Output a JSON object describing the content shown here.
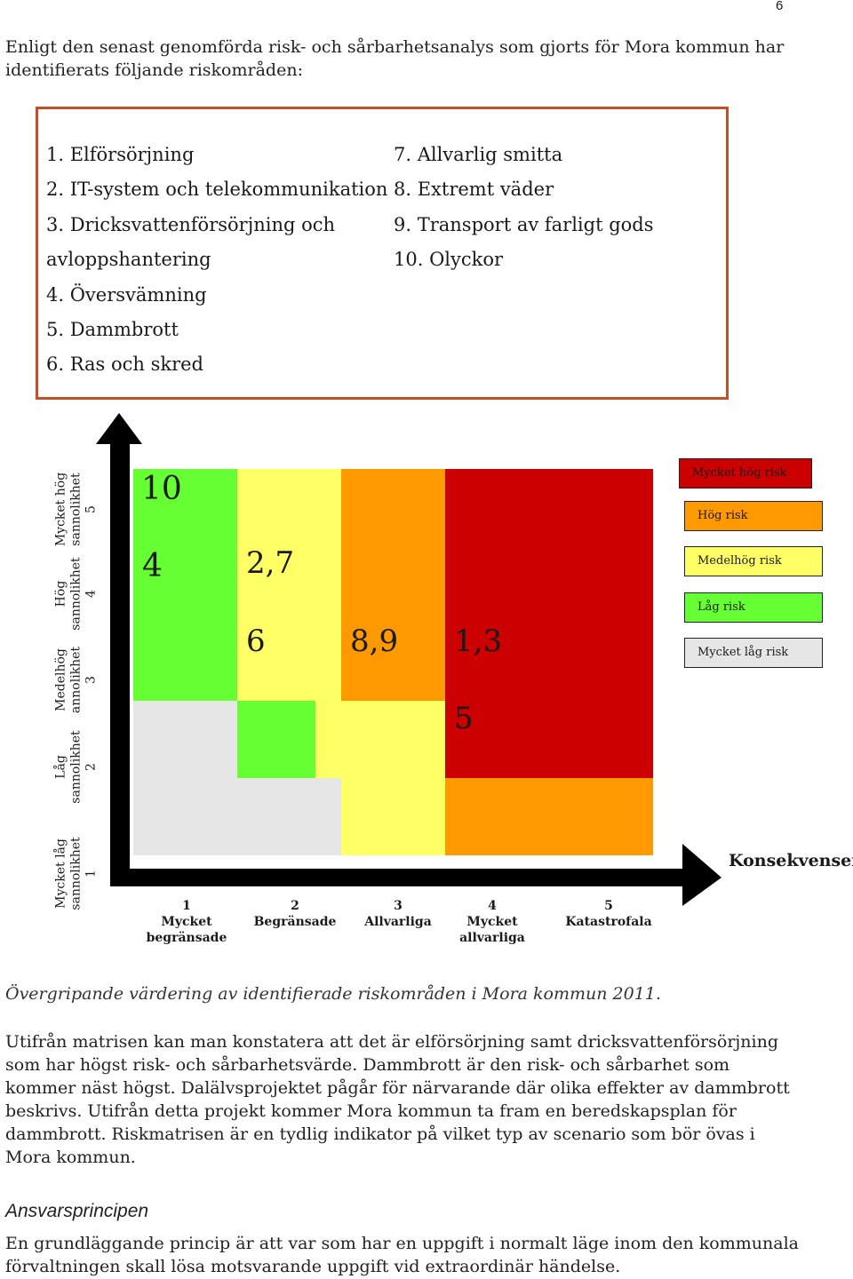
{
  "page_number": "6",
  "intro": "Enligt den senast genomförda risk- och sårbarhetsanalys som gjorts för Mora kommun har identifierats följande riskområden:",
  "risk_areas_left": [
    "1. Elförsörjning",
    "2. IT-system och telekommunikation",
    "3. Dricksvattenförsörjning och",
    "avloppshantering",
    "4. Översvämning",
    "5. Dammbrott",
    "6. Ras och skred"
  ],
  "risk_areas_right": [
    "7. Allvarlig smitta",
    "8. Extremt väder",
    "9. Transport av farligt gods",
    "10. Olyckor"
  ],
  "colors": {
    "very_high": "#cc0000",
    "high": "#ff9900",
    "medium_high": "#ffff66",
    "low": "#66ff33",
    "very_low": "#e6e6e6",
    "box_border": "#c0502a"
  },
  "matrix": {
    "y_labels": [
      {
        "line1": "Mycket låg",
        "line2": "sannolikhet",
        "level": "1"
      },
      {
        "line1": "Låg",
        "line2": "sannolikhet",
        "level": "2"
      },
      {
        "line1": "Medelhög",
        "line2": "annolikhet",
        "level": "3"
      },
      {
        "line1": "Hög",
        "line2": "sannolikhet",
        "level": "4"
      },
      {
        "line1": "Mycket hög",
        "line2": "sannolikhet",
        "level": "5"
      }
    ],
    "x_labels": [
      {
        "level": "1",
        "line1": "Mycket",
        "line2": "begränsade"
      },
      {
        "level": "2",
        "line1": "Begränsade",
        "line2": ""
      },
      {
        "level": "3",
        "line1": "Allvarliga",
        "line2": ""
      },
      {
        "level": "4",
        "line1": "Mycket",
        "line2": "allvarliga"
      },
      {
        "level": "5",
        "line1": "Katastrofala",
        "line2": ""
      }
    ],
    "x_axis_title": "Konsekvenser",
    "placements": {
      "c1_5": "10",
      "c1_4": "4",
      "c2_4": "2,7",
      "c2_3": "6",
      "c3_3": "8,9",
      "c4_3": "1,3",
      "c4_2": "5"
    },
    "legend": [
      "Mycket hög risk",
      "Hög risk",
      "Medelhög risk",
      "Låg risk",
      "Mycket låg risk"
    ]
  },
  "caption": "Övergripande värdering av identifierade riskområden i Mora kommun 2011.",
  "body": "Utifrån matrisen kan man konstatera att det är elförsörjning samt dricksvattenförsörjning som har högst risk- och sårbarhetsvärde. Dammbrott är den risk- och sårbarhet som kommer näst högst. Dalälvsprojektet pågår för närvarande där olika effekter av dammbrott beskrivs. Utifrån detta projekt kommer Mora kommun ta fram en beredskapsplan för dammbrott. Riskmatrisen är en tydlig indikator på vilket typ av scenario som bör övas i Mora kommun.",
  "heading": "Ansvarsprincipen",
  "closing": "En grundläggande princip är att var som har en uppgift i normalt läge inom den kommunala förvaltningen skall lösa motsvarande uppgift vid extraordinär händelse."
}
